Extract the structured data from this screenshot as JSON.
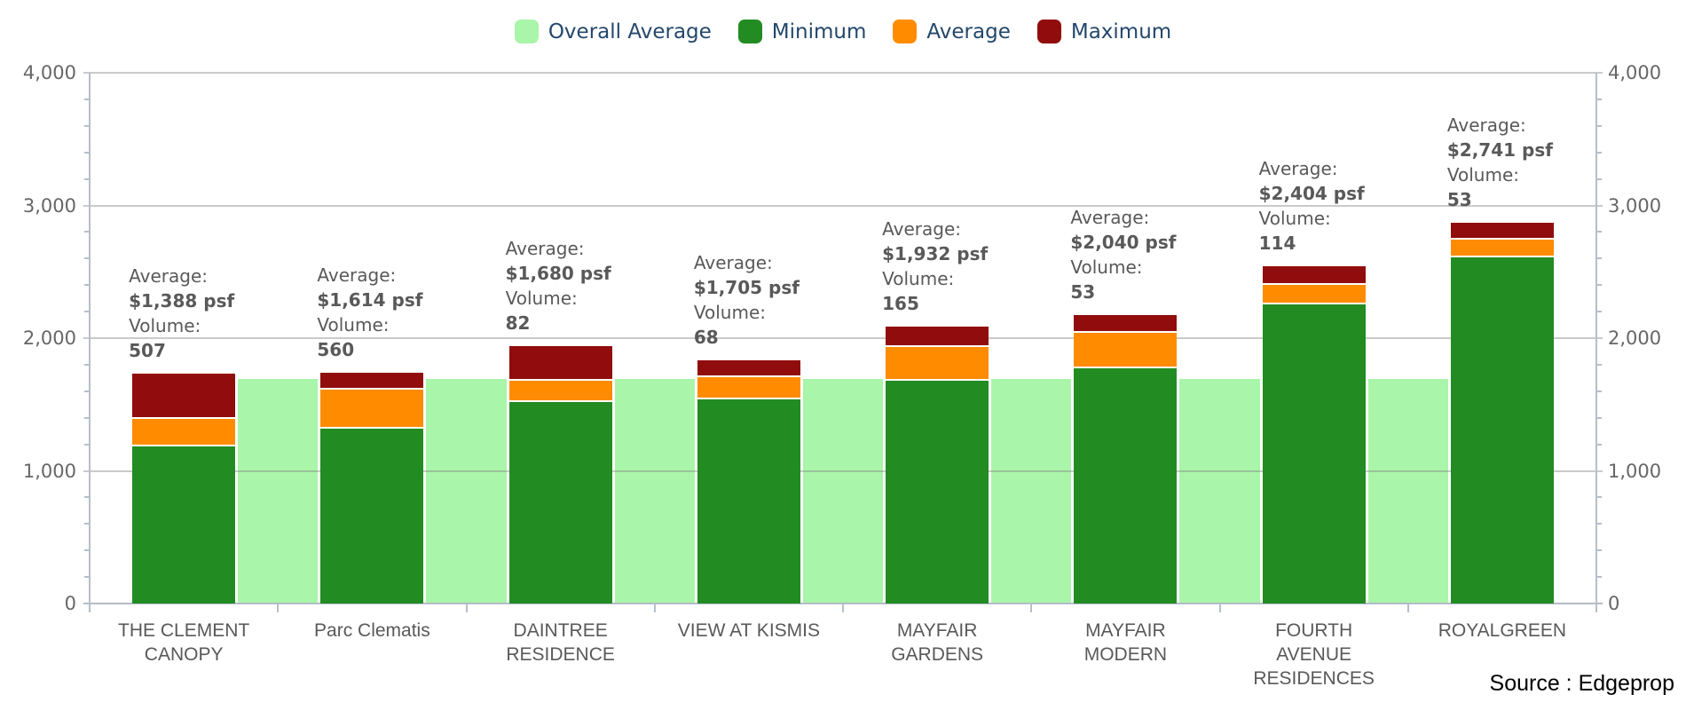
{
  "legend": {
    "items": [
      {
        "label": "Overall Average",
        "color": "#A9F5A9"
      },
      {
        "label": "Minimum",
        "color": "#228B22"
      },
      {
        "label": "Average",
        "color": "#FF8C00"
      },
      {
        "label": "Maximum",
        "color": "#910C0C"
      }
    ]
  },
  "source": "Source : Edgeprop",
  "chart_data": {
    "type": "bar",
    "title": "",
    "xlabel": "",
    "ylabel": "",
    "ylim": [
      0,
      4000
    ],
    "y_major_step": 1000,
    "y_minor_step": 200,
    "y_tick_labels": [
      "0",
      "1,000",
      "2,000",
      "3,000",
      "4,000"
    ],
    "grid": true,
    "legend_position": "top",
    "categories": [
      "THE CLEMENT CANOPY",
      "Parc Clematis",
      "DAINTREE RESIDENCE",
      "VIEW AT KISMIS",
      "MAYFAIR GARDENS",
      "MAYFAIR MODERN",
      "FOURTH AVENUE RESIDENCES",
      "ROYALGREEN"
    ],
    "category_lines": [
      [
        "THE CLEMENT",
        "CANOPY"
      ],
      [
        "Parc Clematis"
      ],
      [
        "DAINTREE",
        "RESIDENCE"
      ],
      [
        "VIEW AT KISMIS"
      ],
      [
        "MAYFAIR",
        "GARDENS"
      ],
      [
        "MAYFAIR",
        "MODERN"
      ],
      [
        "FOURTH",
        "AVENUE",
        "RESIDENCES"
      ],
      [
        "ROYALGREEN"
      ]
    ],
    "series": [
      {
        "name": "Overall Average",
        "color": "#A9F5A9",
        "values": [
          1690,
          1690,
          1690,
          1690,
          1690,
          1690,
          1690,
          1690
        ]
      },
      {
        "name": "Minimum",
        "color": "#228B22",
        "values": [
          1185,
          1320,
          1520,
          1540,
          1680,
          1770,
          2255,
          2610
        ]
      },
      {
        "name": "Average",
        "color": "#FF8C00",
        "values": [
          1388,
          1614,
          1680,
          1705,
          1932,
          2040,
          2404,
          2741
        ]
      },
      {
        "name": "Maximum",
        "color": "#910C0C",
        "values": [
          1735,
          1740,
          1940,
          1830,
          2090,
          2175,
          2540,
          2870
        ]
      }
    ],
    "annotation_prefix_average": "Average:",
    "annotation_prefix_volume": "Volume:",
    "annotations": [
      {
        "average": "$1,388 psf",
        "volume": "507"
      },
      {
        "average": "$1,614 psf",
        "volume": "560"
      },
      {
        "average": "$1,680 psf",
        "volume": "82"
      },
      {
        "average": "$1,705 psf",
        "volume": "68"
      },
      {
        "average": "$1,932 psf",
        "volume": "165"
      },
      {
        "average": "$2,040 psf",
        "volume": "53"
      },
      {
        "average": "$2,404 psf",
        "volume": "114"
      },
      {
        "average": "$2,741 psf",
        "volume": "53"
      }
    ]
  }
}
